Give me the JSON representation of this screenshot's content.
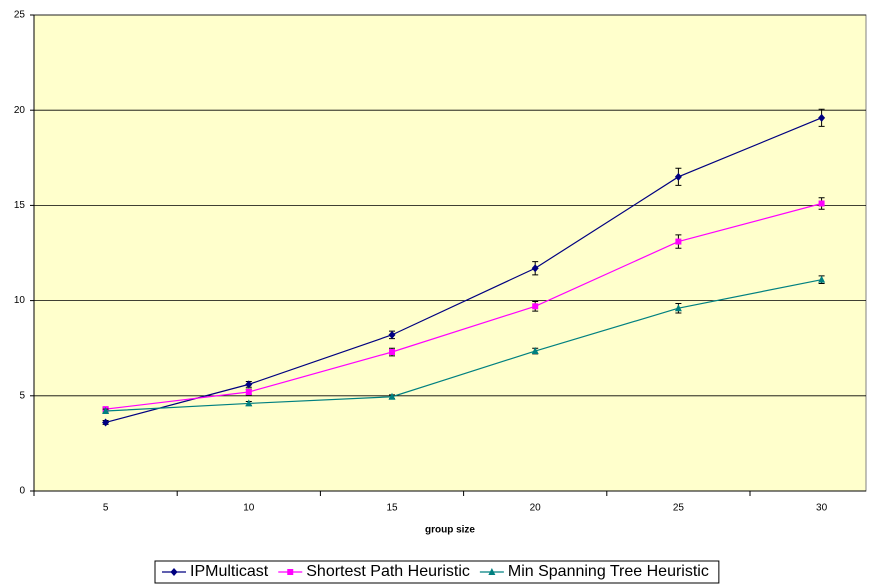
{
  "chart_data": {
    "type": "line",
    "xlabel": "group size",
    "categories": [
      5,
      10,
      15,
      20,
      25,
      30
    ],
    "series": [
      {
        "name": "IPMulticast",
        "color": "#000080",
        "marker": "diamond",
        "values": [
          3.6,
          5.6,
          8.2,
          11.7,
          16.5,
          19.6
        ],
        "errors": [
          0.1,
          0.15,
          0.2,
          0.35,
          0.45,
          0.45
        ]
      },
      {
        "name": "Shortest Path Heuristic",
        "color": "#ff00ff",
        "marker": "square",
        "values": [
          4.3,
          5.2,
          7.3,
          9.7,
          13.1,
          15.1
        ],
        "errors": [
          0.1,
          0.15,
          0.2,
          0.25,
          0.35,
          0.3
        ]
      },
      {
        "name": "Min Spanning Tree Heuristic",
        "color": "#008080",
        "marker": "triangle",
        "values": [
          4.2,
          4.6,
          4.95,
          7.35,
          9.6,
          11.1
        ],
        "errors": [
          0.1,
          0.1,
          0.1,
          0.15,
          0.25,
          0.2
        ]
      }
    ],
    "ylim": [
      0,
      25
    ],
    "yticks": [
      0,
      5,
      10,
      15,
      20,
      25
    ],
    "grid": true,
    "background": "#ffffcc",
    "legend": "bottom"
  }
}
